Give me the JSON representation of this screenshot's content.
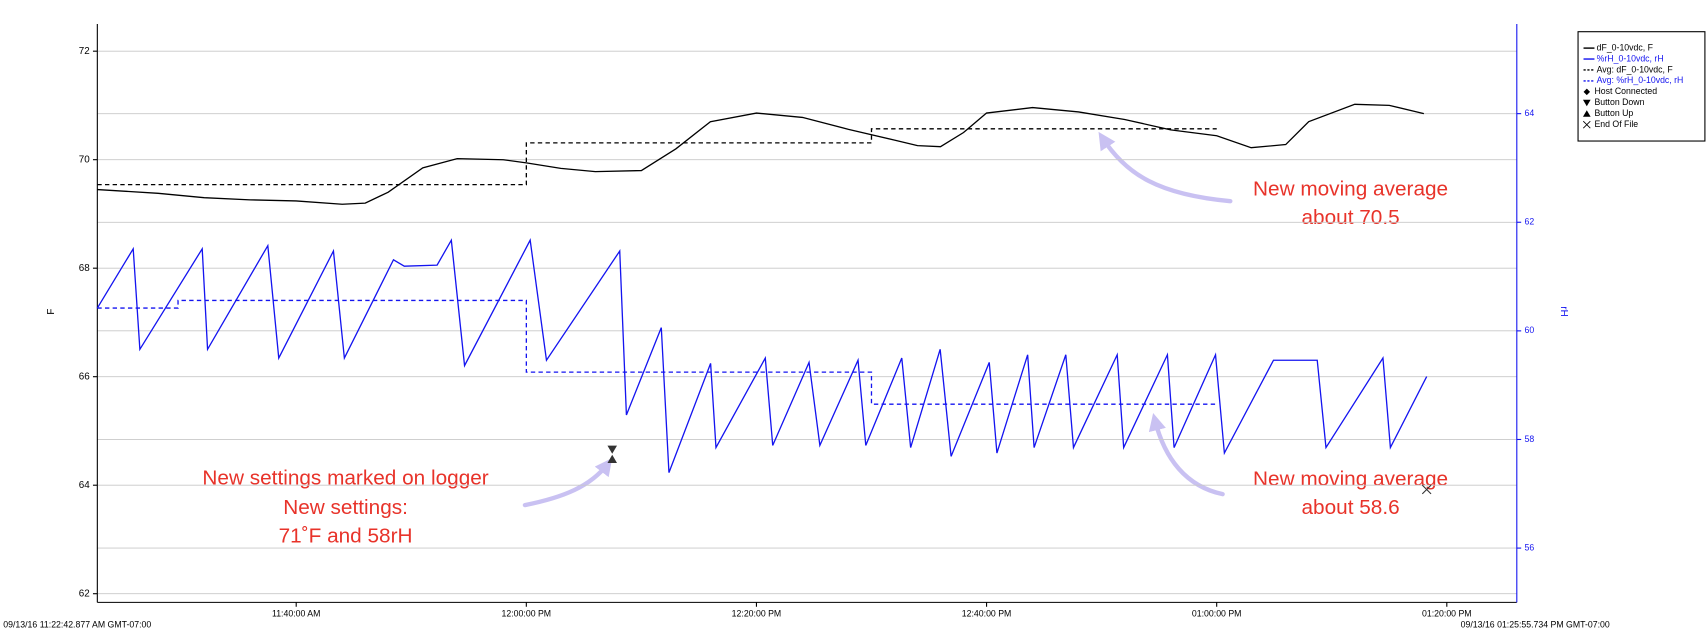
{
  "chart_data": {
    "type": "line",
    "ylabel": "F",
    "y2label": "rH",
    "start_label": "09/13/16 11:22:42.877 AM GMT-07:00",
    "end_label": "09/13/16 01:25:55.734 PM GMT-07:00",
    "xlim": [
      "11:22:43",
      "13:26:05"
    ],
    "xticks": [
      {
        "value": "11:40:00",
        "label": "11:40:00 AM"
      },
      {
        "value": "12:00:00",
        "label": "12:00:00 PM"
      },
      {
        "value": "12:20:00",
        "label": "12:20:00 PM"
      },
      {
        "value": "12:40:00",
        "label": "12:40:00 PM"
      },
      {
        "value": "13:00:00",
        "label": "01:00:00 PM"
      },
      {
        "value": "13:20:00",
        "label": "01:20:00 PM"
      }
    ],
    "ylim": [
      61.84,
      72.5
    ],
    "yticks": [
      62,
      64,
      66,
      68,
      70,
      72
    ],
    "y2lim": [
      55,
      65.65
    ],
    "y2ticks": [
      56,
      58,
      60,
      62,
      64
    ],
    "grid": true,
    "legend": "top-right",
    "series": [
      {
        "name": "dF_0-10vdc, F",
        "color": "#000000",
        "dashed": false,
        "x": [
          "11:22:43",
          "11:28:00",
          "11:32:00",
          "11:36:00",
          "11:40:00",
          "11:44:00",
          "11:46:00",
          "11:48:00",
          "11:51:00",
          "11:54:00",
          "11:58:00",
          "12:00:00",
          "12:03:00",
          "12:06:00",
          "12:10:00",
          "12:13:00",
          "12:16:00",
          "12:20:00",
          "12:24:00",
          "12:28:00",
          "12:32:00",
          "12:34:00",
          "12:36:00",
          "12:38:00",
          "12:40:00",
          "12:44:00",
          "12:48:00",
          "12:52:00",
          "12:56:00",
          "13:00:00",
          "13:03:00",
          "13:06:00",
          "13:08:00",
          "13:12:00",
          "13:15:00",
          "13:18:00"
        ],
        "values": [
          69.45,
          69.38,
          69.3,
          69.26,
          69.24,
          69.18,
          69.2,
          69.4,
          69.85,
          70.02,
          70.0,
          69.94,
          69.84,
          69.78,
          69.8,
          70.2,
          70.7,
          70.86,
          70.78,
          70.56,
          70.36,
          70.26,
          70.24,
          70.5,
          70.86,
          70.96,
          70.88,
          70.74,
          70.55,
          70.44,
          70.22,
          70.28,
          70.7,
          71.02,
          71.0,
          70.85
        ]
      },
      {
        "name": "%rH_0-10vdc, rH",
        "color": "#1414f0",
        "dashed": false,
        "axis": "y2",
        "x": [
          "11:22:43",
          "11:25:50",
          "11:26:25",
          "11:31:50",
          "11:32:18",
          "11:37:32",
          "11:38:29",
          "11:43:14",
          "11:44:11",
          "11:48:27",
          "11:49:24",
          "11:52:15",
          "11:53:29",
          "11:54:38",
          "12:00:20",
          "12:01:45",
          "12:08:07",
          "12:08:42",
          "12:11:44",
          "12:12:24",
          "12:16:01",
          "12:16:29",
          "12:20:46",
          "12:21:25",
          "12:24:34",
          "12:25:31",
          "12:28:50",
          "12:29:30",
          "12:32:38",
          "12:33:24",
          "12:35:58",
          "12:36:55",
          "12:40:14",
          "12:40:54",
          "12:43:34",
          "12:44:08",
          "12:46:53",
          "12:47:33",
          "12:51:21",
          "12:51:55",
          "12:55:43",
          "12:56:18",
          "12:59:54",
          "13:00:40",
          "13:04:56",
          "13:08:44",
          "13:09:30",
          "13:14:27",
          "13:15:06",
          "13:18:15"
        ],
        "values": [
          60.42,
          61.51,
          59.66,
          61.51,
          59.66,
          61.57,
          59.5,
          61.47,
          59.5,
          61.31,
          61.19,
          61.21,
          61.67,
          59.36,
          61.67,
          59.46,
          61.47,
          58.45,
          60.06,
          57.39,
          59.4,
          57.85,
          59.5,
          57.89,
          59.42,
          57.89,
          59.46,
          57.89,
          59.5,
          57.85,
          59.66,
          57.69,
          59.42,
          57.75,
          59.56,
          57.85,
          59.56,
          57.85,
          59.56,
          57.85,
          59.56,
          57.85,
          59.56,
          57.75,
          59.46,
          59.46,
          57.85,
          59.5,
          57.85,
          59.16
        ]
      },
      {
        "name": "Avg: dF_0-10vdc, F",
        "color": "#000000",
        "dashed": true,
        "x": [
          "11:22:43",
          "12:00:00",
          "12:00:00",
          "12:30:00",
          "12:30:00",
          "13:00:00"
        ],
        "values": [
          69.54,
          69.54,
          70.31,
          70.31,
          70.57,
          70.57
        ]
      },
      {
        "name": "Avg: %rH_0-10vdc, rH",
        "color": "#1414f0",
        "dashed": true,
        "axis": "y2",
        "x": [
          "11:22:43",
          "11:29:44",
          "11:29:44",
          "12:00:00",
          "12:00:00",
          "12:30:00",
          "12:30:00",
          "13:00:00"
        ],
        "values": [
          60.42,
          60.42,
          60.56,
          60.56,
          59.24,
          59.24,
          58.65,
          58.65
        ]
      }
    ],
    "events": [
      {
        "name": "Host Connected",
        "symbol": "diamond"
      },
      {
        "name": "Button Down",
        "symbol": "triangle-down",
        "x": "12:07:28",
        "y": 64.66
      },
      {
        "name": "Button Up",
        "symbol": "triangle-up",
        "x": "12:07:28",
        "y": 64.48
      },
      {
        "name": "End Of File",
        "symbol": "cross",
        "x": "13:18:15",
        "y": 63.92
      }
    ],
    "annotations": [
      {
        "lines": [
          "New moving average",
          "about 70.5"
        ]
      },
      {
        "lines": [
          "New moving average",
          "about 58.6"
        ]
      },
      {
        "lines": [
          "New settings marked on logger",
          "New settings:",
          "71˚F and 58rH"
        ]
      }
    ]
  }
}
